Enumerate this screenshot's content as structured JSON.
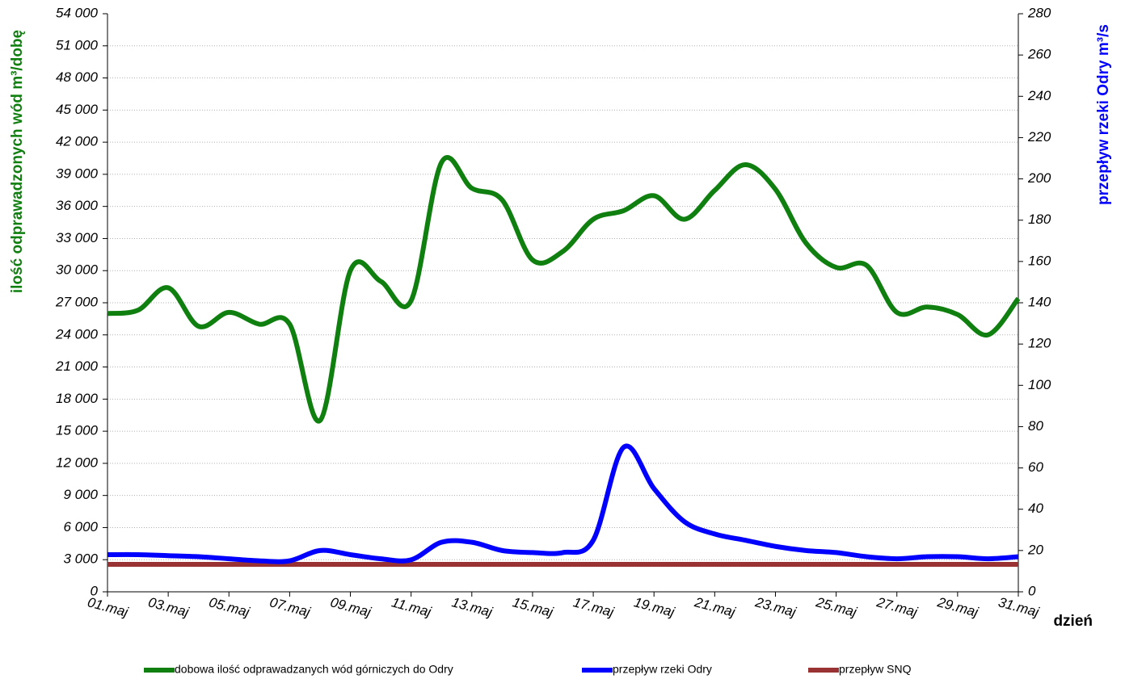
{
  "chart_data": {
    "type": "line",
    "y_label": "ilość odprawadzonych wód m³/dobę",
    "y2_label": "przepływ rzeki Odry m³/s",
    "x_label": "dzień",
    "categories": [
      "01.maj",
      null,
      "03.maj",
      null,
      "05.maj",
      null,
      "07.maj",
      null,
      "09.maj",
      null,
      "11.maj",
      null,
      "13.maj",
      null,
      "15.maj",
      null,
      "17.maj",
      null,
      "19.maj",
      null,
      "21.maj",
      null,
      "23.maj",
      null,
      "25.maj",
      null,
      "27.maj",
      null,
      "29.maj",
      null,
      "31.maj"
    ],
    "ylim": [
      0,
      54000
    ],
    "yticks": [
      0,
      {
        "value": 3000,
        "label": "3 000"
      },
      {
        "value": 6000,
        "label": "6 000"
      },
      {
        "value": 9000,
        "label": "9 000"
      },
      {
        "value": 12000,
        "label": "12 000"
      },
      {
        "value": 15000,
        "label": "15 000"
      },
      {
        "value": 18000,
        "label": "18 000"
      },
      {
        "value": 21000,
        "label": "21 000"
      },
      {
        "value": 24000,
        "label": "24 000"
      },
      {
        "value": 27000,
        "label": "27 000"
      },
      {
        "value": 30000,
        "label": "30 000"
      },
      {
        "value": 33000,
        "label": "33 000"
      },
      {
        "value": 36000,
        "label": "36 000"
      },
      {
        "value": 39000,
        "label": "39 000"
      },
      {
        "value": 42000,
        "label": "42 000"
      },
      {
        "value": 45000,
        "label": "45 000"
      },
      {
        "value": 48000,
        "label": "48 000"
      },
      {
        "value": 51000,
        "label": "51 000"
      },
      {
        "value": 54000,
        "label": "54 000"
      }
    ],
    "y2lim": [
      0,
      280
    ],
    "y2ticks": [
      0,
      20,
      40,
      60,
      80,
      100,
      120,
      140,
      160,
      180,
      200,
      220,
      240,
      260,
      280
    ],
    "grid": true,
    "series": [
      {
        "name": "dobowa ilość odprawadzanych wód górniczych do Odry",
        "color": "#0f7f0f",
        "axis": "y",
        "values": [
          26000,
          26300,
          28400,
          24800,
          26100,
          25000,
          25000,
          16000,
          30000,
          29000,
          27200,
          40100,
          37700,
          36600,
          31000,
          31800,
          34800,
          35600,
          37000,
          34800,
          37500,
          39900,
          37600,
          32600,
          30300,
          30500,
          26100,
          26600,
          25900,
          24000,
          27400
        ]
      },
      {
        "name": "przepływ rzeki Odry",
        "color": "#0000ff",
        "axis": "y2",
        "values": [
          18,
          18,
          17.5,
          17,
          16,
          15,
          15,
          20,
          18,
          16,
          15.5,
          24,
          24,
          20,
          19,
          19,
          25,
          70,
          50,
          34,
          28,
          25,
          22,
          20,
          19,
          17,
          16,
          17,
          17,
          16,
          17
        ]
      },
      {
        "name": "przepływ SNQ",
        "color": "#993333",
        "axis": "y2",
        "values": [
          13.3,
          13.3,
          13.3,
          13.3,
          13.3,
          13.3,
          13.3,
          13.3,
          13.3,
          13.3,
          13.3,
          13.3,
          13.3,
          13.3,
          13.3,
          13.3,
          13.3,
          13.3,
          13.3,
          13.3,
          13.3,
          13.3,
          13.3,
          13.3,
          13.3,
          13.3,
          13.3,
          13.3,
          13.3,
          13.3,
          13.3
        ]
      }
    ]
  }
}
